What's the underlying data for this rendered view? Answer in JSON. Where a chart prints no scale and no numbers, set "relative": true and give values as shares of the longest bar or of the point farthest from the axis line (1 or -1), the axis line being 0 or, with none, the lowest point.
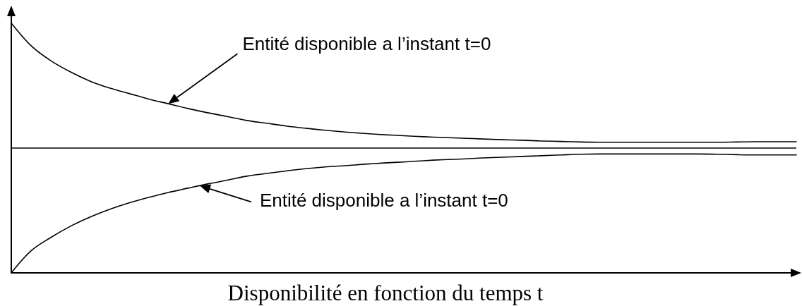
{
  "chart_data": {
    "type": "line",
    "relative": true,
    "xlabel": "Disponibilité en fonction du temps t",
    "categories": [
      null,
      null,
      null,
      null,
      null,
      null,
      null,
      null,
      null,
      null,
      null,
      null,
      null,
      null,
      null,
      null,
      null,
      null,
      null,
      null,
      null,
      null,
      null,
      null,
      null,
      null,
      null,
      null,
      null,
      null,
      null,
      null,
      null,
      null,
      null,
      null,
      null,
      null,
      null,
      null,
      null
    ],
    "series": [
      {
        "color": "#000000",
        "values": [
          1.0,
          0.91,
          0.85,
          0.805,
          0.768,
          0.74,
          0.718,
          0.696,
          0.677,
          0.658,
          0.641,
          0.626,
          0.61,
          0.599,
          0.588,
          0.579,
          0.571,
          0.564,
          0.558,
          0.553,
          0.549,
          0.545,
          0.542,
          0.539,
          0.536,
          0.533,
          0.531,
          0.528,
          0.526,
          0.524,
          0.523,
          0.523,
          0.523,
          0.523,
          0.523,
          0.523,
          0.523,
          0.524,
          0.525,
          0.525,
          0.525
        ]
      },
      {
        "color": "#000000",
        "values": [
          0.0,
          0.088,
          0.141,
          0.186,
          0.223,
          0.254,
          0.28,
          0.302,
          0.322,
          0.339,
          0.356,
          0.371,
          0.387,
          0.398,
          0.408,
          0.417,
          0.424,
          0.429,
          0.435,
          0.44,
          0.444,
          0.449,
          0.453,
          0.456,
          0.46,
          0.463,
          0.466,
          0.469,
          0.472,
          0.475,
          0.476,
          0.476,
          0.476,
          0.476,
          0.476,
          0.476,
          0.475,
          0.473,
          0.472,
          0.472,
          0.472
        ]
      }
    ],
    "ref_lines": [
      {
        "axis": "y",
        "value": 0.5,
        "color": "#000000"
      }
    ],
    "annotations": [
      "Entité disponible a l’instant t=0",
      "Entité disponible a l’instant t=0"
    ],
    "grid": false,
    "marker": "none",
    "line_style": "solid"
  }
}
